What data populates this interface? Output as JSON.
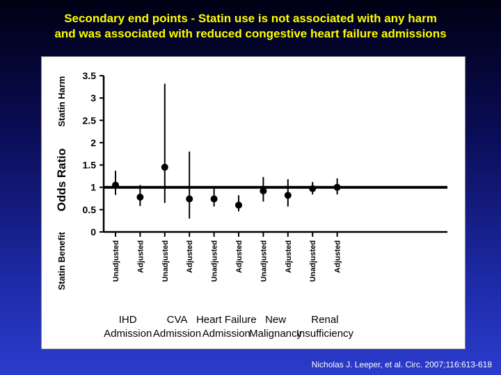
{
  "slide": {
    "title_line1": "Secondary end points - Statin use is not associated with any harm",
    "title_line2": "and was associated with reduced congestive heart failure admissions",
    "citation": "Nicholas J. Leeper, et al. Circ. 2007;116:613-618"
  },
  "colors": {
    "title": "#ffff00",
    "background_top": "#000014",
    "background_bottom": "#2a3ccc",
    "panel": "#ffffff",
    "marks": "#000000",
    "citation": "#ffffff"
  },
  "chart_data": {
    "type": "scatter",
    "ylabel": "Odds Ratio",
    "ylabel_harm": "Statin Harm",
    "ylabel_benefit": "Statin Benefit",
    "ylim": [
      0,
      3.5
    ],
    "yticks": [
      "0",
      "0.5",
      "1",
      "1.5",
      "2",
      "2.5",
      "3",
      "3.5"
    ],
    "reference_line": 1,
    "grid": false,
    "groups": [
      {
        "label_line1": "IHD",
        "label_line2": "Admission"
      },
      {
        "label_line1": "CVA",
        "label_line2": "Admission"
      },
      {
        "label_line1": "Heart Failure",
        "label_line2": "Admission"
      },
      {
        "label_line1": "New",
        "label_line2": "Malignancy"
      },
      {
        "label_line1": "Renal",
        "label_line2": "Insufficiency"
      }
    ],
    "points": [
      {
        "group": 0,
        "label": "Unadjusted",
        "value": 1.05,
        "low": 0.83,
        "high": 1.37
      },
      {
        "group": 0,
        "label": "Adjusted",
        "value": 0.78,
        "low": 0.58,
        "high": 1.05
      },
      {
        "group": 1,
        "label": "Unadjusted",
        "value": 1.45,
        "low": 0.65,
        "high": 3.32
      },
      {
        "group": 1,
        "label": "Adjusted",
        "value": 0.74,
        "low": 0.3,
        "high": 1.8
      },
      {
        "group": 2,
        "label": "Unadjusted",
        "value": 0.74,
        "low": 0.57,
        "high": 0.97
      },
      {
        "group": 2,
        "label": "Adjusted",
        "value": 0.6,
        "low": 0.46,
        "high": 0.82
      },
      {
        "group": 3,
        "label": "Unadjusted",
        "value": 0.92,
        "low": 0.68,
        "high": 1.23
      },
      {
        "group": 3,
        "label": "Adjusted",
        "value": 0.82,
        "low": 0.57,
        "high": 1.18
      },
      {
        "group": 4,
        "label": "Unadjusted",
        "value": 0.97,
        "low": 0.84,
        "high": 1.12
      },
      {
        "group": 4,
        "label": "Adjusted",
        "value": 1.0,
        "low": 0.84,
        "high": 1.2
      }
    ]
  }
}
